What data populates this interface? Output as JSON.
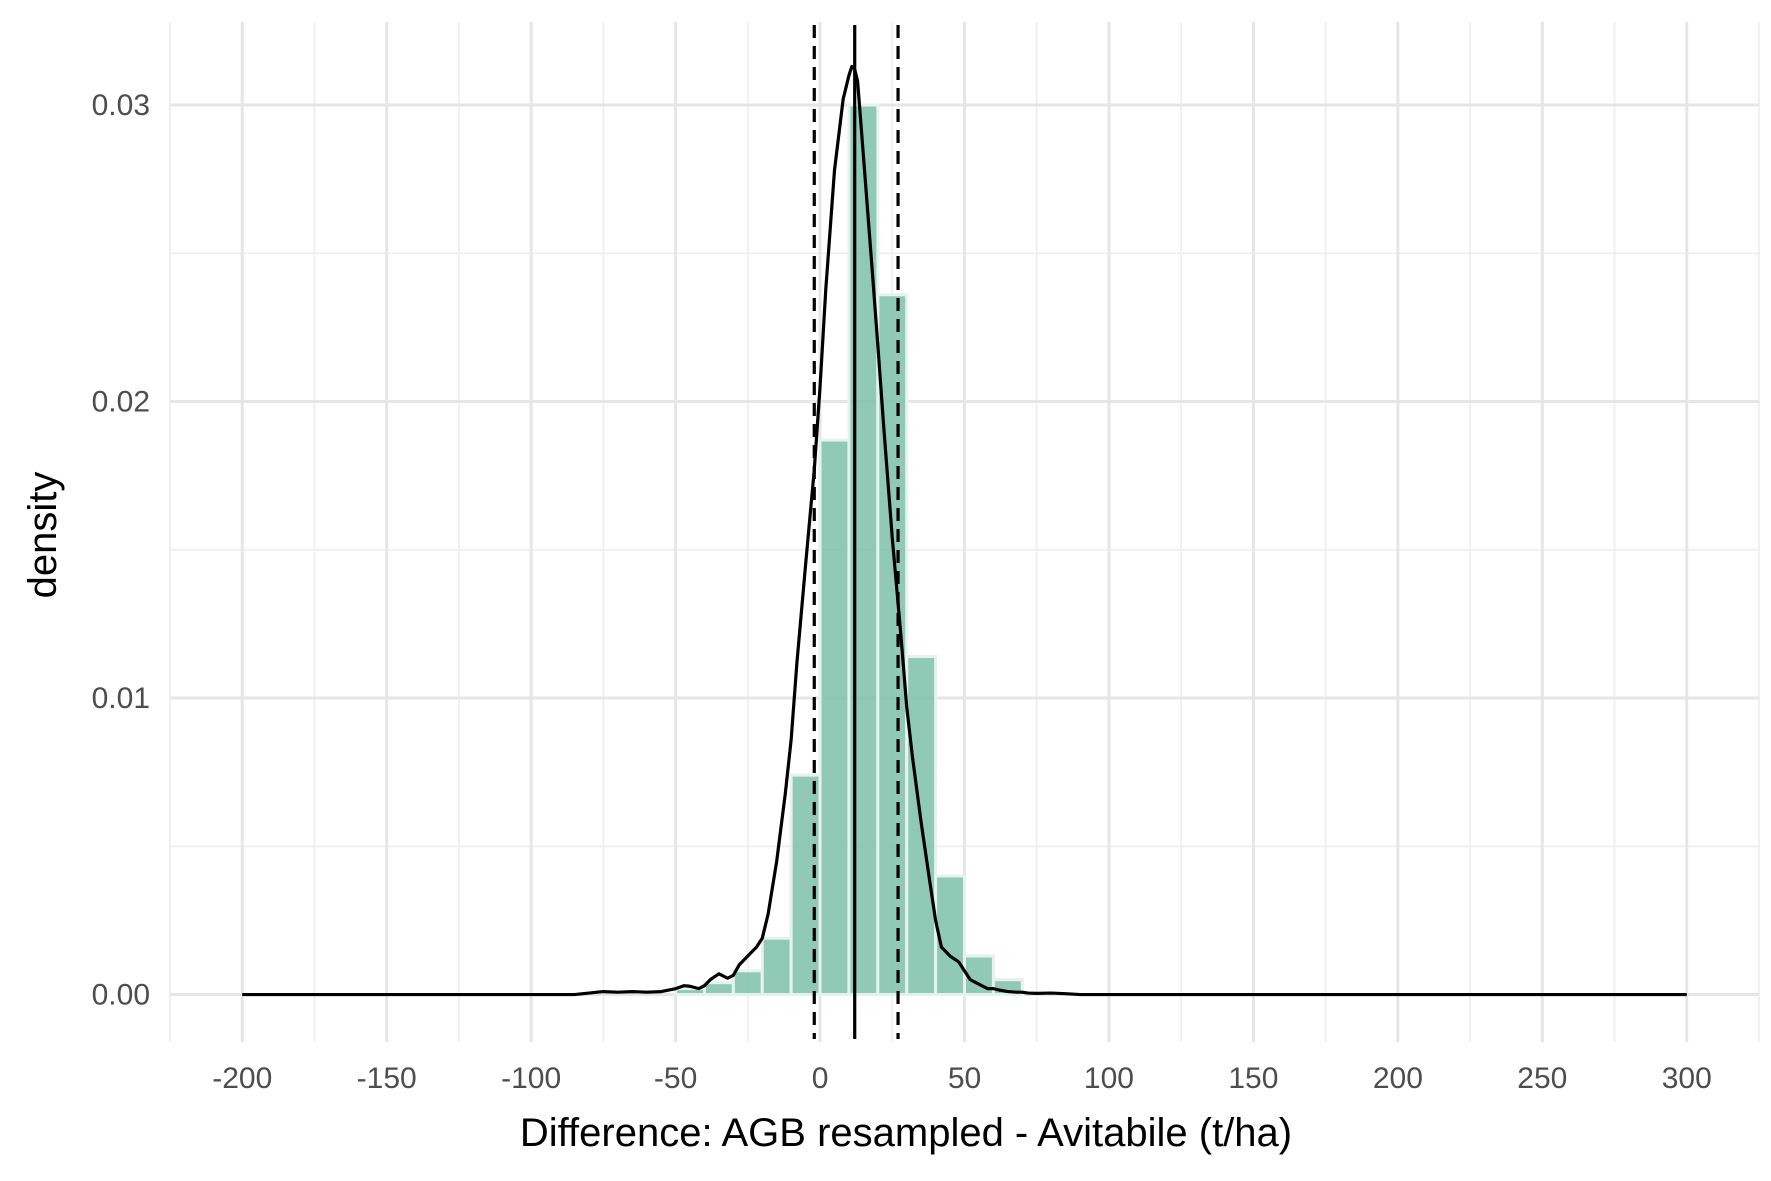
{
  "chart_data": {
    "type": "bar",
    "subtype": "histogram-with-density",
    "xlabel": "Difference: AGB resampled - Avitabile (t/ha)",
    "ylabel": "density",
    "xlim": [
      -225,
      325
    ],
    "ylim": [
      -0.0016,
      0.0328
    ],
    "x_ticks": [
      -200,
      -150,
      -100,
      -50,
      0,
      50,
      100,
      150,
      200,
      250,
      300
    ],
    "x_tick_labels": [
      "-200",
      "-150",
      "-100",
      "-50",
      "0",
      "50",
      "100",
      "150",
      "200",
      "250",
      "300"
    ],
    "y_ticks": [
      0,
      0.01,
      0.02,
      0.03
    ],
    "y_tick_labels": [
      "0.00",
      "0.01",
      "0.02",
      "0.03"
    ],
    "x_minor_ticks": [
      -225,
      -175,
      -125,
      -75,
      -25,
      25,
      75,
      125,
      175,
      225,
      275,
      325
    ],
    "y_minor_ticks": [
      0.005,
      0.015,
      0.025
    ],
    "grid": true,
    "bin_width": 10,
    "bars": [
      {
        "x0": -50,
        "x1": -40,
        "value": 0.0002
      },
      {
        "x0": -40,
        "x1": -30,
        "value": 0.0004
      },
      {
        "x0": -30,
        "x1": -20,
        "value": 0.0008
      },
      {
        "x0": -20,
        "x1": -10,
        "value": 0.0019
      },
      {
        "x0": -10,
        "x1": 0,
        "value": 0.0074
      },
      {
        "x0": 0,
        "x1": 10,
        "value": 0.0187
      },
      {
        "x0": 10,
        "x1": 20,
        "value": 0.03
      },
      {
        "x0": 20,
        "x1": 30,
        "value": 0.0236
      },
      {
        "x0": 30,
        "x1": 40,
        "value": 0.0114
      },
      {
        "x0": 40,
        "x1": 50,
        "value": 0.004
      },
      {
        "x0": 50,
        "x1": 60,
        "value": 0.0013
      },
      {
        "x0": 60,
        "x1": 70,
        "value": 0.0005
      }
    ],
    "density_curve": {
      "x": [
        -200,
        -100,
        -85,
        -80,
        -75,
        -70,
        -65,
        -60,
        -55,
        -50,
        -47,
        -45,
        -42,
        -40,
        -38,
        -35,
        -32,
        -30,
        -28,
        -25,
        -22,
        -20,
        -18,
        -15,
        -12,
        -10,
        -8,
        -5,
        -2,
        0,
        2,
        5,
        8,
        10,
        11,
        12,
        13,
        15,
        18,
        20,
        22,
        25,
        28,
        30,
        32,
        35,
        38,
        40,
        42,
        45,
        48,
        50,
        52,
        55,
        58,
        60,
        62,
        65,
        68,
        70,
        72,
        75,
        80,
        85,
        90,
        100,
        150,
        200,
        250,
        300
      ],
      "y": [
        0,
        0,
        0,
        5e-05,
        0.0001,
        8e-05,
        0.0001,
        8e-05,
        0.0001,
        0.0002,
        0.0003,
        0.00028,
        0.0002,
        0.0003,
        0.0005,
        0.0007,
        0.00055,
        0.00065,
        0.001,
        0.0013,
        0.0016,
        0.0019,
        0.0027,
        0.0045,
        0.0068,
        0.0086,
        0.0112,
        0.0145,
        0.0177,
        0.0205,
        0.0238,
        0.0278,
        0.0302,
        0.031,
        0.0313,
        0.0312,
        0.0308,
        0.0283,
        0.0245,
        0.0219,
        0.0192,
        0.0154,
        0.0121,
        0.0097,
        0.008,
        0.0058,
        0.0038,
        0.0025,
        0.0016,
        0.0013,
        0.0011,
        0.0008,
        0.0005,
        0.00035,
        0.0002,
        0.0002,
        0.00015,
        0.0001,
        8e-05,
        8e-05,
        5e-05,
        4e-05,
        5e-05,
        3e-05,
        0,
        0,
        0,
        0,
        0,
        0
      ]
    },
    "mean_line": {
      "x": 12,
      "style": "solid"
    },
    "dashed_lines": [
      {
        "x": -2,
        "style": "dashed"
      },
      {
        "x": 27,
        "style": "dashed"
      }
    ],
    "colors": {
      "bar_fill": "#7dbfa8",
      "bar_fill_opacity": 0.85,
      "bar_outline": "#e6f2ee",
      "curve": "#000000",
      "grid_major": "#e6e6e6",
      "grid_minor": "#efefef"
    }
  }
}
